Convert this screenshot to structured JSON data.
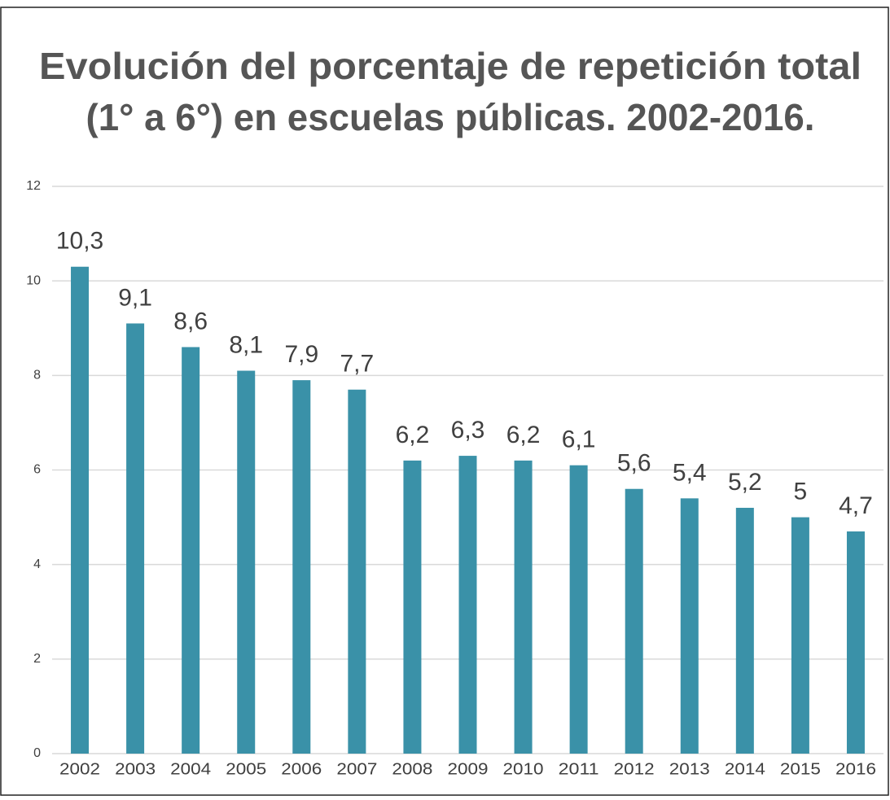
{
  "chart_data": {
    "type": "bar",
    "title": [
      "Evolución del porcentaje de repetición total",
      "(1° a 6°) en escuelas públicas. 2002-2016."
    ],
    "categories": [
      "2002",
      "2003",
      "2004",
      "2005",
      "2006",
      "2007",
      "2008",
      "2009",
      "2010",
      "2011",
      "2012",
      "2013",
      "2014",
      "2015",
      "2016"
    ],
    "values": [
      10.3,
      9.1,
      8.6,
      8.1,
      7.9,
      7.7,
      6.2,
      6.3,
      6.2,
      6.1,
      5.6,
      5.4,
      5.2,
      5,
      4.7
    ],
    "value_labels": [
      "10,3",
      "9,1",
      "8,6",
      "8,1",
      "7,9",
      "7,7",
      "6,2",
      "6,3",
      "6,2",
      "6,1",
      "5,6",
      "5,4",
      "5,2",
      "5",
      "4,7"
    ],
    "color": "#3a91a8",
    "ylim": [
      0,
      12
    ],
    "yticks": [
      0,
      2,
      4,
      6,
      8,
      10,
      12
    ],
    "grid": true
  }
}
